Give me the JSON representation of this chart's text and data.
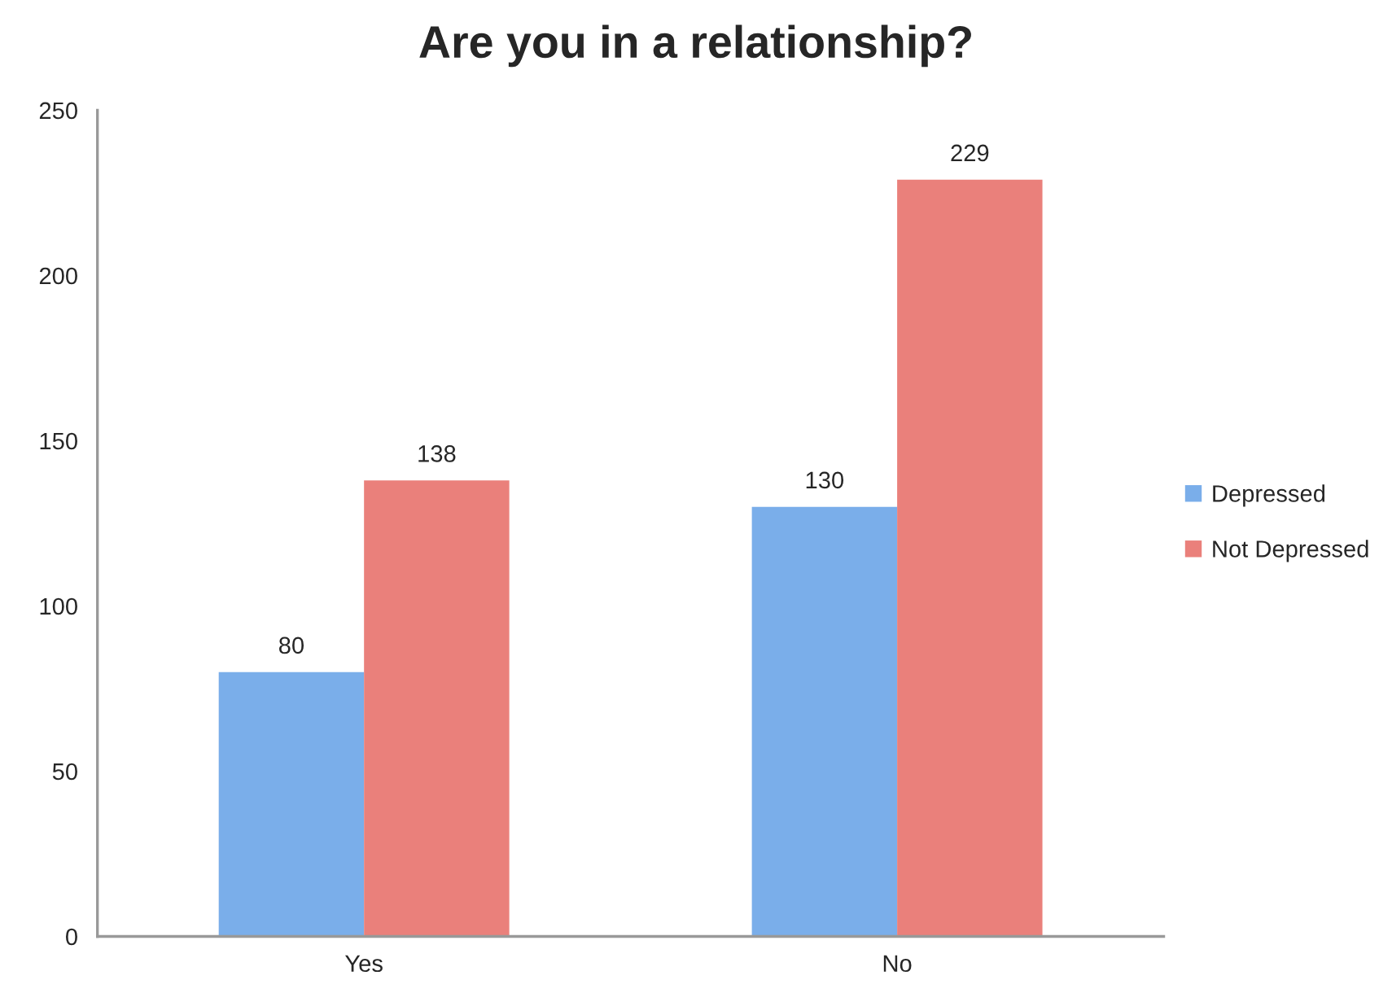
{
  "chart_data": {
    "type": "bar",
    "title": "Are you in a relationship?",
    "categories": [
      "Yes",
      "No"
    ],
    "series": [
      {
        "name": "Depressed",
        "color": "#7aaeea",
        "values": [
          80,
          130
        ]
      },
      {
        "name": "Not Depressed",
        "color": "#ea807b",
        "values": [
          138,
          229
        ]
      }
    ],
    "ylim": [
      0,
      250
    ],
    "yticks": [
      0,
      50,
      100,
      150,
      200,
      250
    ],
    "data_labels": true,
    "legend": "right",
    "grid": false
  }
}
